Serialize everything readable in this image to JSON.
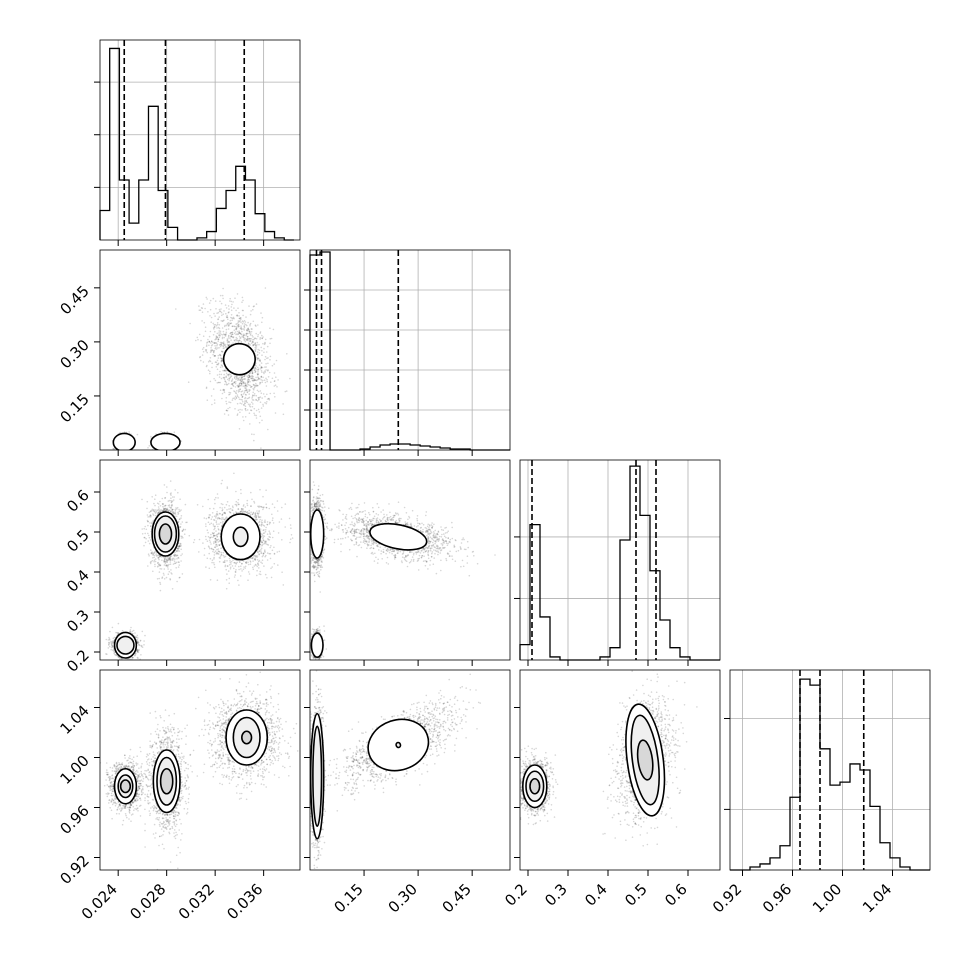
{
  "chart_data": {
    "type": "corner",
    "title": "",
    "variables": [
      {
        "range": [
          0.0225,
          0.039
        ],
        "ticks": [
          0.024,
          0.028,
          0.032,
          0.036
        ],
        "tick_labels": [
          "0.024",
          "0.028",
          "0.032",
          "0.036"
        ],
        "quantiles": [
          0.0245,
          0.0279,
          0.0344
        ],
        "histogram": {
          "bin_edges": [
            0.0225,
            0.0233,
            0.0241,
            0.0249,
            0.0257,
            0.0265,
            0.0273,
            0.0281,
            0.0289,
            0.0297,
            0.0305,
            0.0313,
            0.0321,
            0.0329,
            0.0337,
            0.0345,
            0.0353,
            0.0361,
            0.0369,
            0.0377,
            0.0385
          ],
          "counts": [
            28,
            182,
            57,
            16,
            57,
            127,
            47,
            12,
            0,
            0,
            2,
            8,
            30,
            47,
            70,
            57,
            25,
            8,
            2,
            0
          ],
          "ylim": [
            0,
            190
          ],
          "yticks": [
            50,
            100,
            150
          ]
        }
      },
      {
        "range": [
          0.0,
          0.555
        ],
        "ticks": [
          0.15,
          0.3,
          0.45
        ],
        "tick_labels": [
          "0.15",
          "0.30",
          "0.45"
        ],
        "quantiles": [
          0.018,
          0.032,
          0.245
        ],
        "histogram": {
          "bin_edges": [
            0.0,
            0.0278,
            0.0556,
            0.0833,
            0.1111,
            0.1389,
            0.1667,
            0.1944,
            0.2222,
            0.25,
            0.2778,
            0.3056,
            0.3333,
            0.3611,
            0.3889,
            0.4167,
            0.4444,
            0.4722,
            0.5,
            0.5278,
            0.5556
          ],
          "counts": [
            195,
            198,
            0,
            0,
            0,
            1,
            3,
            5,
            6,
            6,
            5,
            4,
            3,
            2,
            1,
            1,
            0,
            0,
            0,
            0
          ],
          "ylim": [
            0,
            200
          ],
          "yticks": [
            40,
            80,
            120,
            160
          ]
        }
      },
      {
        "range": [
          0.18,
          0.68
        ],
        "ticks": [
          0.2,
          0.3,
          0.4,
          0.5,
          0.6
        ],
        "tick_labels": [
          "0.2",
          "0.3",
          "0.4",
          "0.5",
          "0.6"
        ],
        "quantiles": [
          0.21,
          0.47,
          0.52
        ],
        "histogram": {
          "bin_edges": [
            0.18,
            0.205,
            0.23,
            0.255,
            0.28,
            0.305,
            0.33,
            0.355,
            0.38,
            0.405,
            0.43,
            0.455,
            0.48,
            0.505,
            0.53,
            0.555,
            0.58,
            0.605,
            0.63,
            0.655,
            0.68
          ],
          "counts": [
            5,
            44,
            14,
            1,
            0,
            0,
            0,
            0,
            1,
            4,
            39,
            63,
            47,
            29,
            13,
            4,
            1,
            0,
            0,
            0
          ],
          "ylim": [
            0,
            65
          ],
          "yticks": [
            20,
            40
          ]
        }
      },
      {
        "range": [
          0.91,
          1.07
        ],
        "ticks": [
          0.92,
          0.96,
          1.0,
          1.04
        ],
        "tick_labels": [
          "0.92",
          "0.96",
          "1.00",
          "1.04"
        ],
        "quantiles": [
          0.966,
          0.982,
          1.017
        ],
        "histogram": {
          "bin_edges": [
            0.91,
            0.918,
            0.926,
            0.934,
            0.942,
            0.95,
            0.958,
            0.966,
            0.974,
            0.982,
            0.99,
            0.998,
            1.006,
            1.014,
            1.022,
            1.03,
            1.038,
            1.046,
            1.054,
            1.062,
            1.07
          ],
          "counts": [
            0,
            0,
            1,
            2,
            4,
            8,
            24,
            63,
            61,
            40,
            28,
            29,
            35,
            33,
            21,
            9,
            4,
            1,
            0,
            0
          ],
          "ylim": [
            0,
            66
          ],
          "yticks": [
            20,
            50
          ]
        }
      }
    ],
    "panels_2d": [
      {
        "x_var": 0,
        "y_var": 1,
        "clusters": [
          {
            "center": [
              0.034,
              0.252
            ],
            "spread": [
              0.0013,
              0.075
            ],
            "rho": -0.35,
            "contours": [
              [
                0.0013,
                0.043
              ]
            ]
          },
          {
            "center": [
              0.0245,
              0.021
            ],
            "spread": [
              0.0003,
              0.01
            ],
            "rho": 0,
            "contours": [
              [
                0.0009,
                0.025
              ]
            ]
          },
          {
            "center": [
              0.0279,
              0.021
            ],
            "spread": [
              0.0004,
              0.01
            ],
            "rho": 0,
            "contours": [
              [
                0.0012,
                0.025
              ]
            ]
          }
        ]
      },
      {
        "x_var": 0,
        "y_var": 2,
        "clusters": [
          {
            "center": [
              0.0279,
              0.495
            ],
            "spread": [
              0.0006,
              0.04
            ],
            "rho": 0,
            "contours": [
              [
                0.0011,
                0.055
              ],
              [
                0.0009,
                0.045
              ],
              [
                0.0005,
                0.025
              ]
            ]
          },
          {
            "center": [
              0.0341,
              0.488
            ],
            "spread": [
              0.0013,
              0.042
            ],
            "rho": 0,
            "contours": [
              [
                0.0016,
                0.057
              ],
              [
                0.0006,
                0.024
              ]
            ]
          },
          {
            "center": [
              0.0246,
              0.217
            ],
            "spread": [
              0.0005,
              0.014
            ],
            "rho": 0,
            "contours": [
              [
                0.0009,
                0.032
              ],
              [
                0.0007,
                0.022
              ]
            ]
          }
        ]
      },
      {
        "x_var": 0,
        "y_var": 3,
        "clusters": [
          {
            "center": [
              0.0346,
              1.016
            ],
            "spread": [
              0.0014,
              0.016
            ],
            "rho": 0,
            "contours": [
              [
                0.0017,
                0.022
              ],
              [
                0.0011,
                0.016
              ],
              [
                0.0004,
                0.005
              ]
            ]
          },
          {
            "center": [
              0.028,
              0.981
            ],
            "spread": [
              0.0007,
              0.019
            ],
            "rho": 0,
            "contours": [
              [
                0.0011,
                0.025
              ],
              [
                0.0008,
                0.019
              ],
              [
                0.0005,
                0.01
              ]
            ]
          },
          {
            "center": [
              0.0246,
              0.977
            ],
            "spread": [
              0.0006,
              0.009
            ],
            "rho": 0,
            "contours": [
              [
                0.0009,
                0.014
              ],
              [
                0.0006,
                0.009
              ],
              [
                0.0004,
                0.005
              ]
            ]
          }
        ]
      },
      {
        "x_var": 1,
        "y_var": 2,
        "clusters": [
          {
            "center": [
              0.245,
              0.488
            ],
            "spread": [
              0.08,
              0.028
            ],
            "rho": -0.4,
            "contours": [
              [
                0.08,
                0.03
              ]
            ]
          },
          {
            "center": [
              0.02,
              0.495
            ],
            "spread": [
              0.008,
              0.04
            ],
            "rho": 0,
            "contours": [
              [
                0.018,
                0.06
              ]
            ]
          },
          {
            "center": [
              0.02,
              0.217
            ],
            "spread": [
              0.006,
              0.015
            ],
            "rho": 0,
            "contours": [
              [
                0.016,
                0.03
              ]
            ]
          }
        ]
      },
      {
        "x_var": 1,
        "y_var": 3,
        "clusters": [
          {
            "center": [
              0.245,
              1.01
            ],
            "spread": [
              0.08,
              0.016
            ],
            "rho": 0.7,
            "contours": [
              [
                0.085,
                0.02
              ],
              [
                0.006,
                0.002
              ]
            ]
          },
          {
            "center": [
              0.02,
              0.985
            ],
            "spread": [
              0.008,
              0.028
            ],
            "rho": 0,
            "contours": [
              [
                0.018,
                0.05
              ],
              [
                0.012,
                0.04
              ]
            ]
          }
        ]
      },
      {
        "x_var": 2,
        "y_var": 3,
        "clusters": [
          {
            "center": [
              0.493,
              0.998
            ],
            "spread": [
              0.035,
              0.024
            ],
            "rho": 0.25,
            "contours": [
              [
                0.045,
                0.045
              ],
              [
                0.032,
                0.036
              ],
              [
                0.018,
                0.016
              ]
            ]
          },
          {
            "center": [
              0.217,
              0.977
            ],
            "spread": [
              0.018,
              0.01
            ],
            "rho": 0,
            "contours": [
              [
                0.03,
                0.017
              ],
              [
                0.022,
                0.012
              ],
              [
                0.012,
                0.006
              ]
            ]
          }
        ]
      }
    ],
    "grid": true,
    "legend": "none"
  }
}
